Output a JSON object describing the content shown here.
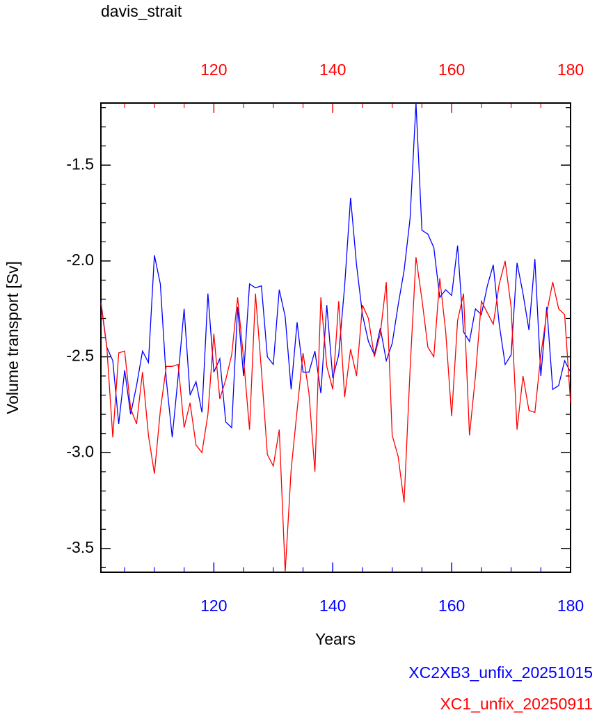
{
  "chart_data": {
    "type": "line",
    "title": "davis_strait",
    "xlabel": "Years",
    "ylabel": "Volume transport [Sv]",
    "x": [
      101,
      102,
      103,
      104,
      105,
      106,
      107,
      108,
      109,
      110,
      111,
      112,
      113,
      114,
      115,
      116,
      117,
      118,
      119,
      120,
      121,
      122,
      123,
      124,
      125,
      126,
      127,
      128,
      129,
      130,
      131,
      132,
      133,
      134,
      135,
      136,
      137,
      138,
      139,
      140,
      141,
      142,
      143,
      144,
      145,
      146,
      147,
      148,
      149,
      150,
      151,
      152,
      153,
      154,
      155,
      156,
      157,
      158,
      159,
      160,
      161,
      162,
      163,
      164,
      165,
      166,
      167,
      168,
      169,
      170,
      171,
      172,
      173,
      174,
      175,
      176,
      177,
      178,
      179,
      180
    ],
    "series": [
      {
        "name": "XC2XB3_unfix_20251015",
        "color": "#0000ff",
        "values": [
          -2.21,
          -2.45,
          -2.52,
          -2.85,
          -2.57,
          -2.8,
          -2.65,
          -2.47,
          -2.53,
          -1.97,
          -2.12,
          -2.62,
          -2.92,
          -2.6,
          -2.25,
          -2.7,
          -2.63,
          -2.79,
          -2.17,
          -2.58,
          -2.51,
          -2.84,
          -2.87,
          -2.24,
          -2.6,
          -2.12,
          -2.14,
          -2.13,
          -2.5,
          -2.54,
          -2.15,
          -2.29,
          -2.67,
          -2.32,
          -2.58,
          -2.58,
          -2.47,
          -2.69,
          -2.23,
          -2.61,
          -2.49,
          -2.13,
          -1.67,
          -2.02,
          -2.28,
          -2.42,
          -2.49,
          -2.35,
          -2.52,
          -2.43,
          -2.23,
          -2.05,
          -1.78,
          -1.176,
          -1.84,
          -1.86,
          -1.93,
          -2.19,
          -2.15,
          -2.18,
          -1.92,
          -2.37,
          -2.42,
          -2.25,
          -2.28,
          -2.13,
          -2.02,
          -2.33,
          -2.54,
          -2.49,
          -2.01,
          -2.17,
          -2.36,
          -1.99,
          -2.6,
          -2.24,
          -2.67,
          -2.65,
          -2.52,
          -2.58
        ]
      },
      {
        "name": "XC1_unfix_20250911",
        "color": "#ff0000",
        "values": [
          -2.22,
          -2.45,
          -2.92,
          -2.48,
          -2.47,
          -2.77,
          -2.85,
          -2.58,
          -2.91,
          -3.11,
          -2.78,
          -2.55,
          -2.55,
          -2.54,
          -2.87,
          -2.74,
          -2.96,
          -3.0,
          -2.8,
          -2.38,
          -2.72,
          -2.62,
          -2.49,
          -2.19,
          -2.51,
          -2.88,
          -2.17,
          -2.57,
          -3.01,
          -3.07,
          -2.88,
          -3.624,
          -3.09,
          -2.78,
          -2.48,
          -2.69,
          -3.1,
          -2.19,
          -2.55,
          -2.67,
          -2.21,
          -2.71,
          -2.46,
          -2.6,
          -2.23,
          -2.3,
          -2.5,
          -2.38,
          -2.11,
          -2.91,
          -3.02,
          -3.26,
          -2.57,
          -1.98,
          -2.2,
          -2.45,
          -2.5,
          -2.09,
          -2.37,
          -2.81,
          -2.31,
          -2.17,
          -2.91,
          -2.6,
          -2.21,
          -2.27,
          -2.33,
          -2.12,
          -2.0,
          -2.24,
          -2.88,
          -2.6,
          -2.78,
          -2.79,
          -2.49,
          -2.27,
          -2.11,
          -2.25,
          -2.28,
          -2.74
        ]
      }
    ],
    "xlim": [
      101,
      180
    ],
    "xticks": [
      120,
      140,
      160,
      180
    ],
    "xaxis_color": "#0000ff",
    "x2lim": [
      101,
      180
    ],
    "x2ticks": [
      120,
      140,
      160,
      180
    ],
    "x2axis_color": "#ff0000",
    "xminorticks": [
      105,
      110,
      115,
      125,
      130,
      135,
      145,
      150,
      155,
      165,
      170,
      175
    ],
    "ylim": [
      -3.624,
      -1.176
    ],
    "yticks": [
      -1.5,
      {
        "value": -2.0,
        "label": "-2.0"
      },
      -2.5,
      {
        "value": -3.0,
        "label": "-3.0"
      },
      -3.5
    ],
    "yminorticks": [
      -1.2,
      -1.3,
      -1.4,
      -1.6,
      -1.7,
      -1.8,
      -1.9,
      -2.1,
      -2.2,
      -2.3,
      -2.4,
      -2.6,
      -2.7,
      -2.8,
      -2.9,
      -3.1,
      -3.2,
      -3.3,
      -3.4,
      -3.6
    ],
    "grid": false,
    "legend": "bottom-right"
  }
}
